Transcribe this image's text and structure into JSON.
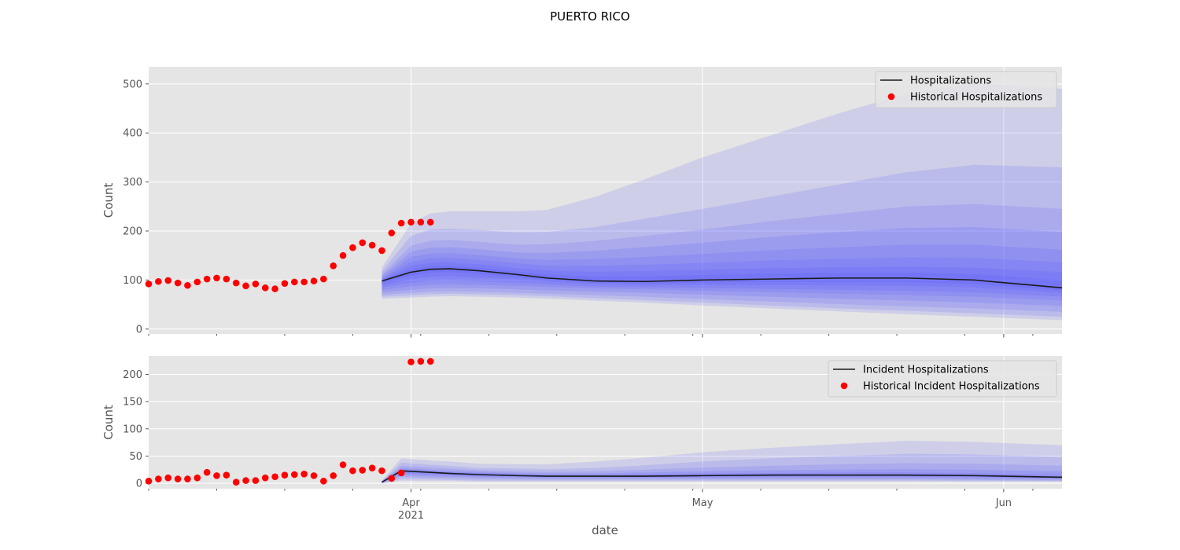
{
  "title": "PUERTO RICO",
  "xlabel": "date",
  "x_ticks": [
    {
      "date": "2021-04-01",
      "label": "Apr",
      "sublabel": "2021"
    },
    {
      "date": "2021-05-01",
      "label": "May",
      "sublabel": ""
    },
    {
      "date": "2021-06-01",
      "label": "Jun",
      "sublabel": ""
    }
  ],
  "colors": {
    "background": "#e5e5e5",
    "grid": "#ffffff",
    "band": "#4444ff",
    "median": "#1a1a1a",
    "historical": "#ff0000"
  },
  "chart_data": [
    {
      "type": "line",
      "ylabel": "Count",
      "xlim": [
        "2021-03-05",
        "2021-06-07"
      ],
      "ylim": [
        -10,
        535
      ],
      "y_ticks": [
        0,
        100,
        200,
        300,
        400,
        500
      ],
      "grid": true,
      "legend_position": "top-right",
      "legend": [
        "Hospitalizations",
        "Historical Hospitalizations"
      ],
      "historical": {
        "name": "Historical Hospitalizations",
        "x": [
          "2021-03-05",
          "2021-03-06",
          "2021-03-07",
          "2021-03-08",
          "2021-03-09",
          "2021-03-10",
          "2021-03-11",
          "2021-03-12",
          "2021-03-13",
          "2021-03-14",
          "2021-03-15",
          "2021-03-16",
          "2021-03-17",
          "2021-03-18",
          "2021-03-19",
          "2021-03-20",
          "2021-03-21",
          "2021-03-22",
          "2021-03-23",
          "2021-03-24",
          "2021-03-25",
          "2021-03-26",
          "2021-03-27",
          "2021-03-28",
          "2021-03-29",
          "2021-03-30",
          "2021-03-31",
          "2021-04-01",
          "2021-04-02",
          "2021-04-03"
        ],
        "y": [
          92,
          97,
          99,
          94,
          89,
          96,
          102,
          104,
          102,
          94,
          88,
          92,
          84,
          82,
          93,
          96,
          96,
          98,
          102,
          129,
          150,
          166,
          176,
          171,
          160,
          196,
          216,
          218,
          218,
          218
        ]
      },
      "forecast": {
        "name": "Hospitalizations",
        "x": [
          "2021-03-29",
          "2021-04-01",
          "2021-04-03",
          "2021-04-05",
          "2021-04-08",
          "2021-04-12",
          "2021-04-15",
          "2021-04-20",
          "2021-04-25",
          "2021-05-01",
          "2021-05-08",
          "2021-05-15",
          "2021-05-22",
          "2021-05-29",
          "2021-06-07"
        ],
        "median": [
          98,
          116,
          122,
          123,
          119,
          111,
          104,
          98,
          97,
          100,
          102,
          104,
          104,
          100,
          84
        ],
        "lower": [
          [
            62,
            64,
            66,
            67,
            66,
            64,
            62,
            58,
            54,
            48,
            42,
            36,
            30,
            25,
            18
          ],
          [
            66,
            69,
            71,
            72,
            71,
            69,
            67,
            63,
            59,
            54,
            48,
            42,
            37,
            32,
            25
          ],
          [
            70,
            74,
            76,
            77,
            76,
            74,
            72,
            69,
            66,
            61,
            56,
            51,
            46,
            42,
            35
          ],
          [
            75,
            80,
            83,
            84,
            83,
            81,
            79,
            76,
            74,
            70,
            66,
            62,
            58,
            54,
            47
          ],
          [
            80,
            87,
            90,
            91,
            90,
            88,
            86,
            83,
            81,
            78,
            75,
            72,
            69,
            66,
            58
          ],
          [
            85,
            94,
            98,
            99,
            97,
            94,
            91,
            87,
            85,
            84,
            82,
            80,
            78,
            75,
            66
          ],
          [
            90,
            102,
            107,
            108,
            105,
            101,
            97,
            92,
            90,
            90,
            90,
            89,
            88,
            85,
            74
          ],
          [
            94,
            109,
            115,
            116,
            112,
            106,
            100,
            95,
            93,
            95,
            96,
            96,
            96,
            92,
            79
          ]
        ],
        "upper": [
          [
            126,
            215,
            236,
            240,
            240,
            240,
            243,
            270,
            305,
            350,
            395,
            440,
            480,
            502,
            490
          ],
          [
            118,
            190,
            203,
            205,
            202,
            197,
            198,
            208,
            225,
            245,
            270,
            295,
            320,
            335,
            330
          ],
          [
            112,
            170,
            180,
            182,
            178,
            172,
            173,
            180,
            190,
            203,
            220,
            235,
            250,
            255,
            245
          ],
          [
            108,
            158,
            166,
            167,
            163,
            156,
            155,
            160,
            167,
            176,
            188,
            198,
            206,
            208,
            198
          ],
          [
            105,
            147,
            154,
            155,
            151,
            144,
            141,
            143,
            147,
            153,
            161,
            167,
            172,
            172,
            162
          ],
          [
            102,
            137,
            144,
            145,
            141,
            134,
            129,
            129,
            131,
            135,
            140,
            143,
            146,
            145,
            136
          ],
          [
            100,
            129,
            135,
            136,
            132,
            124,
            119,
            117,
            118,
            121,
            124,
            126,
            127,
            125,
            116
          ],
          [
            99,
            122,
            128,
            129,
            125,
            117,
            111,
            107,
            107,
            110,
            113,
            115,
            115,
            112,
            100
          ]
        ]
      }
    },
    {
      "type": "line",
      "ylabel": "Count",
      "xlim": [
        "2021-03-05",
        "2021-06-07"
      ],
      "ylim": [
        -10,
        234
      ],
      "y_ticks": [
        0,
        50,
        100,
        150,
        200
      ],
      "grid": true,
      "legend_position": "top-right",
      "legend": [
        "Incident Hospitalizations",
        "Historical Incident Hospitalizations"
      ],
      "historical": {
        "name": "Historical Incident Hospitalizations",
        "x": [
          "2021-03-05",
          "2021-03-06",
          "2021-03-07",
          "2021-03-08",
          "2021-03-09",
          "2021-03-10",
          "2021-03-11",
          "2021-03-12",
          "2021-03-13",
          "2021-03-14",
          "2021-03-15",
          "2021-03-16",
          "2021-03-17",
          "2021-03-18",
          "2021-03-19",
          "2021-03-20",
          "2021-03-21",
          "2021-03-22",
          "2021-03-23",
          "2021-03-24",
          "2021-03-25",
          "2021-03-26",
          "2021-03-27",
          "2021-03-28",
          "2021-03-29",
          "2021-03-30",
          "2021-03-31",
          "2021-04-01",
          "2021-04-02",
          "2021-04-03"
        ],
        "y": [
          4,
          8,
          10,
          8,
          8,
          10,
          20,
          14,
          15,
          2,
          5,
          5,
          10,
          12,
          15,
          16,
          17,
          14,
          4,
          14,
          34,
          23,
          24,
          28,
          23,
          9,
          19,
          223,
          224,
          224
        ]
      },
      "forecast": {
        "name": "Incident Hospitalizations",
        "x": [
          "2021-03-29",
          "2021-03-31",
          "2021-04-03",
          "2021-04-05",
          "2021-04-08",
          "2021-04-12",
          "2021-04-15",
          "2021-04-20",
          "2021-04-25",
          "2021-05-01",
          "2021-05-08",
          "2021-05-15",
          "2021-05-22",
          "2021-05-29",
          "2021-06-07"
        ],
        "median": [
          2,
          23,
          20,
          18,
          16,
          14,
          13,
          13,
          13,
          14,
          15,
          15,
          15,
          14,
          11
        ],
        "lower": [
          [
            0,
            5,
            4,
            4,
            3,
            3,
            3,
            3,
            3,
            3,
            3,
            3,
            3,
            3,
            3
          ],
          [
            0,
            8,
            7,
            6,
            5,
            5,
            5,
            5,
            5,
            5,
            5,
            5,
            5,
            4,
            4
          ],
          [
            0,
            12,
            10,
            9,
            8,
            7,
            7,
            7,
            7,
            7,
            7,
            7,
            7,
            6,
            5
          ],
          [
            1,
            15,
            13,
            12,
            11,
            10,
            9,
            9,
            9,
            9,
            9,
            9,
            9,
            8,
            7
          ],
          [
            1,
            18,
            16,
            15,
            13,
            12,
            11,
            11,
            11,
            11,
            12,
            12,
            12,
            11,
            9
          ],
          [
            1,
            20,
            18,
            16,
            14,
            13,
            12,
            12,
            12,
            13,
            13,
            14,
            13,
            12,
            10
          ]
        ],
        "upper": [
          [
            5,
            46,
            42,
            40,
            36,
            35,
            35,
            40,
            47,
            57,
            65,
            72,
            78,
            76,
            70
          ],
          [
            4,
            38,
            34,
            32,
            28,
            27,
            26,
            28,
            33,
            40,
            46,
            50,
            54,
            53,
            48
          ],
          [
            4,
            32,
            29,
            27,
            24,
            22,
            21,
            22,
            25,
            29,
            32,
            35,
            37,
            36,
            32
          ],
          [
            3,
            28,
            25,
            23,
            21,
            19,
            18,
            18,
            20,
            22,
            24,
            25,
            26,
            25,
            22
          ],
          [
            3,
            26,
            23,
            21,
            19,
            17,
            16,
            16,
            17,
            18,
            19,
            20,
            20,
            19,
            16
          ],
          [
            2,
            24,
            21,
            20,
            17,
            15,
            14,
            14,
            15,
            16,
            17,
            17,
            17,
            16,
            13
          ]
        ]
      }
    }
  ]
}
